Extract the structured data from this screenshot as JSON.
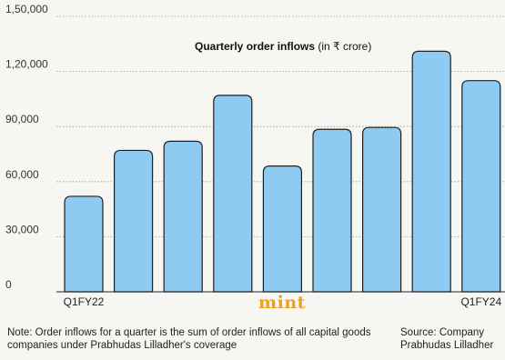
{
  "chart_data": {
    "type": "bar",
    "title": "Quarterly order inflows",
    "title_unit": "(in ₹ crore)",
    "categories": [
      "Q1FY22",
      "",
      "",
      "",
      "",
      "",
      "",
      "",
      "Q1FY24"
    ],
    "values": [
      52000,
      77000,
      82000,
      107000,
      68500,
      88500,
      89500,
      131000,
      115000
    ],
    "y_ticks": [
      "0",
      "30,000",
      "60,000",
      "90,000",
      "1,20,000",
      "1,50,000"
    ],
    "ylim": [
      0,
      150000
    ],
    "grid": true,
    "bar_color": "#8ecbf2",
    "bar_stroke": "#1f1f1f"
  },
  "logo": "mint",
  "logo_color": "#f0a020",
  "note": "Note: Order inflows for a quarter is the sum of order inflows of all capital goods companies under Prabhudas Lilladher's coverage",
  "source_line1": "Source: Company",
  "source_line2": "Prabhudas Lilladher"
}
